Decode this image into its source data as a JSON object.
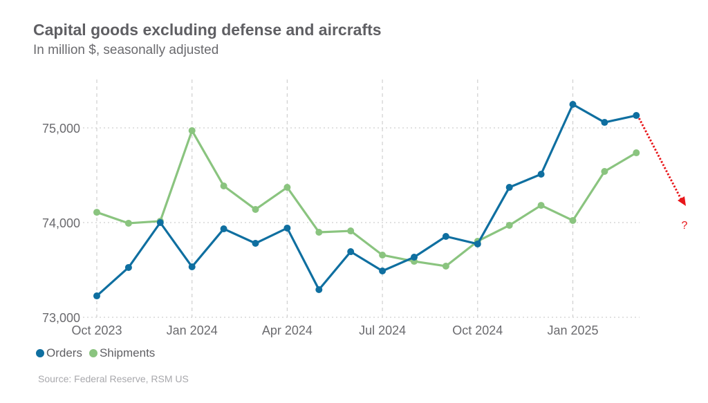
{
  "chart_data": {
    "type": "line",
    "title": "Capital goods excluding defense and aircrafts",
    "subtitle": "In million $, seasonally adjusted",
    "xlabel": "",
    "ylabel": "",
    "ylim": [
      73000,
      75500
    ],
    "yticks": [
      73000,
      74000,
      75000
    ],
    "ytick_labels": [
      "73,000",
      "74,000",
      "75,000"
    ],
    "x": [
      "Oct 2023",
      "Nov 2023",
      "Dec 2023",
      "Jan 2024",
      "Feb 2024",
      "Mar 2024",
      "Apr 2024",
      "May 2024",
      "Jun 2024",
      "Jul 2024",
      "Aug 2024",
      "Sep 2024",
      "Oct 2024",
      "Nov 2024",
      "Dec 2024",
      "Jan 2025",
      "Feb 2025",
      "Mar 2025"
    ],
    "xticks": [
      "Oct 2023",
      "Jan 2024",
      "Apr 2024",
      "Jul 2024",
      "Oct 2024",
      "Jan 2025"
    ],
    "grid": true,
    "legend_position": "bottom-left",
    "series": [
      {
        "name": "Orders",
        "color": "#0f6fa0",
        "values": [
          73226,
          73526,
          74000,
          73533,
          73934,
          73781,
          73942,
          73292,
          73693,
          73489,
          73635,
          73854,
          73774,
          74372,
          74511,
          75248,
          75058,
          75131
        ]
      },
      {
        "name": "Shipments",
        "color": "#8ac47f",
        "values": [
          74109,
          73993,
          74015,
          74971,
          74387,
          74139,
          74372,
          73898,
          73912,
          73657,
          73591,
          73540,
          73803,
          73971,
          74182,
          74022,
          74540,
          74737
        ]
      }
    ],
    "annotation": {
      "text": "?",
      "color": "#e8161a",
      "description": "dotted red arrow pointing down from last Orders point"
    },
    "source": "Source: Federal Reserve, RSM US"
  }
}
